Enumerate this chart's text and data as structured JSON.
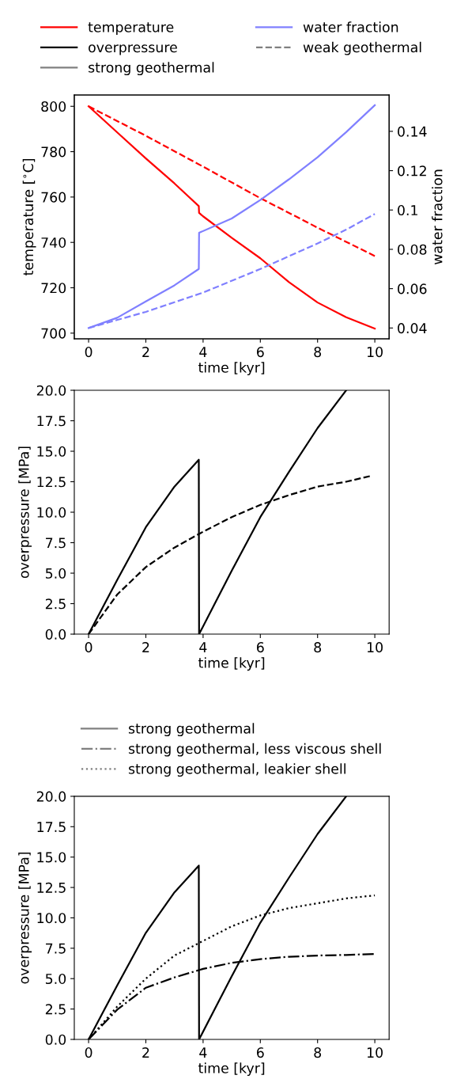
{
  "chart_data": [
    {
      "type": "line",
      "xlabel": "time [kyr]",
      "ylabel": "temperature [$^{∘}$C]",
      "y2label": "water fraction",
      "legend": "top",
      "grid": false,
      "xlim": [
        -0.5,
        10.5
      ],
      "xticks": [
        0,
        2,
        4,
        6,
        8,
        10
      ],
      "ylim": [
        697.5,
        805
      ],
      "yticks": [
        700,
        720,
        740,
        760,
        780,
        800
      ],
      "y2lim": [
        0.0345,
        0.1585
      ],
      "y2ticks": [
        0.04,
        0.06,
        0.08,
        0.1,
        0.12,
        0.14
      ],
      "series": [
        {
          "name": "temperature",
          "color": "#ff0000",
          "line_style": "solid",
          "x": [
            0,
            1,
            2,
            3,
            3.85,
            3.86,
            4,
            5,
            6,
            7,
            8,
            9,
            10
          ],
          "values": [
            800,
            788.5,
            777,
            766,
            756,
            753,
            751.5,
            742,
            733,
            722.5,
            713.5,
            707,
            702
          ]
        },
        {
          "name": "overpressure",
          "color": "#000000",
          "line_style": "solid"
        },
        {
          "name": "strong geothermal",
          "color": "#808080",
          "line_style": "solid"
        },
        {
          "name": "water fraction",
          "color": "#8080ff",
          "line_style": "solid",
          "axis": "y2",
          "x": [
            0,
            1,
            2,
            3,
            3.85,
            3.86,
            5,
            6,
            7,
            8,
            9,
            10
          ],
          "values": [
            0.04,
            0.0452,
            0.0535,
            0.0617,
            0.07,
            0.0884,
            0.0957,
            0.1051,
            0.1156,
            0.1268,
            0.1396,
            0.1533
          ]
        },
        {
          "name": "weak geothermal",
          "color": "#808080",
          "line_style": "dashed"
        },
        {
          "color": "#ff0000",
          "line_style": "dashed",
          "x": [
            0,
            2,
            4,
            6,
            8,
            10
          ],
          "values": [
            800,
            787,
            773.4,
            759.5,
            746.5,
            734
          ]
        },
        {
          "color": "#8080ff",
          "line_style": "dashed",
          "axis": "y2",
          "x": [
            0,
            2,
            4,
            6,
            8,
            9,
            10
          ],
          "values": [
            0.04,
            0.0482,
            0.058,
            0.07,
            0.083,
            0.09,
            0.098
          ]
        }
      ]
    },
    {
      "type": "line",
      "xlabel": "time [kyr]",
      "ylabel": "overpressure [MPa]",
      "grid": false,
      "xlim": [
        -0.5,
        10.5
      ],
      "xticks": [
        0,
        2,
        4,
        6,
        8,
        10
      ],
      "ylim": [
        0,
        20
      ],
      "yticks": [
        {
          "value": 0,
          "label": "0.0"
        },
        {
          "value": 2.5,
          "label": "2.5"
        },
        {
          "value": 5,
          "label": "5.0"
        },
        {
          "value": 7.5,
          "label": "7.5"
        },
        {
          "value": 10,
          "label": "10.0"
        },
        {
          "value": 12.5,
          "label": "12.5"
        },
        {
          "value": 15,
          "label": "15.0"
        },
        {
          "value": 17.5,
          "label": "17.5"
        },
        {
          "value": 20,
          "label": "20.0"
        }
      ],
      "series": [
        {
          "color": "#000000",
          "line_style": "solid",
          "x": [
            0,
            1,
            2,
            3,
            3.85,
            3.86,
            5,
            6,
            7,
            8,
            9
          ],
          "values": [
            0,
            4.45,
            8.77,
            12.1,
            14.3,
            0,
            5.2,
            9.6,
            13.3,
            16.9,
            20
          ]
        },
        {
          "color": "#000000",
          "line_style": "dashed",
          "x": [
            0,
            1,
            2,
            3,
            4,
            5,
            6,
            7,
            8,
            9,
            9.9
          ],
          "values": [
            0,
            3.25,
            5.5,
            7.1,
            8.4,
            9.6,
            10.6,
            11.4,
            12.1,
            12.5,
            13
          ]
        }
      ]
    },
    {
      "type": "line",
      "xlabel": "time [kyr]",
      "ylabel": "overpressure [MPa]",
      "legend": "top",
      "grid": false,
      "xlim": [
        -0.5,
        10.5
      ],
      "xticks": [
        0,
        2,
        4,
        6,
        8,
        10
      ],
      "ylim": [
        0,
        20
      ],
      "yticks": [
        {
          "value": 0,
          "label": "0.0"
        },
        {
          "value": 2.5,
          "label": "2.5"
        },
        {
          "value": 5,
          "label": "5.0"
        },
        {
          "value": 7.5,
          "label": "7.5"
        },
        {
          "value": 10,
          "label": "10.0"
        },
        {
          "value": 12.5,
          "label": "12.5"
        },
        {
          "value": 15,
          "label": "15.0"
        },
        {
          "value": 17.5,
          "label": "17.5"
        },
        {
          "value": 20,
          "label": "20.0"
        }
      ],
      "series": [
        {
          "name": "strong geothermal",
          "color": "#808080",
          "line_style": "solid"
        },
        {
          "name": "strong geothermal, less viscous shell",
          "color": "#808080",
          "line_style": "dashdot"
        },
        {
          "name": "strong geothermal, leakier shell",
          "color": "#808080",
          "line_style": "dotted"
        },
        {
          "color": "#000000",
          "line_style": "solid",
          "x": [
            0,
            1,
            2,
            3,
            3.85,
            3.86,
            5,
            6,
            7,
            8,
            9
          ],
          "values": [
            0,
            4.45,
            8.77,
            12.1,
            14.3,
            0,
            5.2,
            9.6,
            13.3,
            16.9,
            20
          ]
        },
        {
          "color": "#000000",
          "line_style": "dashdot",
          "x": [
            0,
            1,
            2,
            3,
            4,
            5,
            6,
            7,
            8,
            9,
            10
          ],
          "values": [
            0,
            2.45,
            4.25,
            5.1,
            5.8,
            6.3,
            6.6,
            6.8,
            6.9,
            6.95,
            7.03
          ]
        },
        {
          "color": "#000000",
          "line_style": "dotted",
          "x": [
            0,
            1,
            2,
            3,
            4,
            5,
            6,
            7,
            8,
            9,
            10
          ],
          "values": [
            0,
            2.7,
            5.0,
            6.9,
            8.1,
            9.3,
            10.2,
            10.8,
            11.2,
            11.6,
            11.85
          ]
        }
      ]
    }
  ]
}
